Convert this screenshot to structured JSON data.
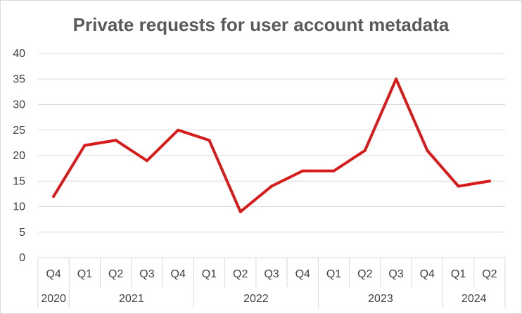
{
  "chart_data": {
    "type": "line",
    "title": "Private requests for user account metadata",
    "xlabel": "",
    "ylabel": "",
    "ylim": [
      0,
      40
    ],
    "yticks": [
      "0",
      "5",
      "10",
      "15",
      "20",
      "25",
      "30",
      "35",
      "40"
    ],
    "grid": true,
    "legend": "none",
    "categories": [
      "Q4",
      "Q1",
      "Q2",
      "Q3",
      "Q4",
      "Q1",
      "Q2",
      "Q3",
      "Q4",
      "Q1",
      "Q2",
      "Q3",
      "Q4",
      "Q1",
      "Q2"
    ],
    "year_groups": [
      {
        "label": "2020",
        "count": 1
      },
      {
        "label": "2021",
        "count": 4
      },
      {
        "label": "2022",
        "count": 4
      },
      {
        "label": "2023",
        "count": 4
      },
      {
        "label": "2024",
        "count": 2
      }
    ],
    "series": [
      {
        "values": [
          12,
          22,
          23,
          19,
          25,
          23,
          9,
          14,
          17,
          17,
          21,
          35,
          21,
          14,
          15
        ],
        "color": "#d71a1a"
      }
    ]
  }
}
